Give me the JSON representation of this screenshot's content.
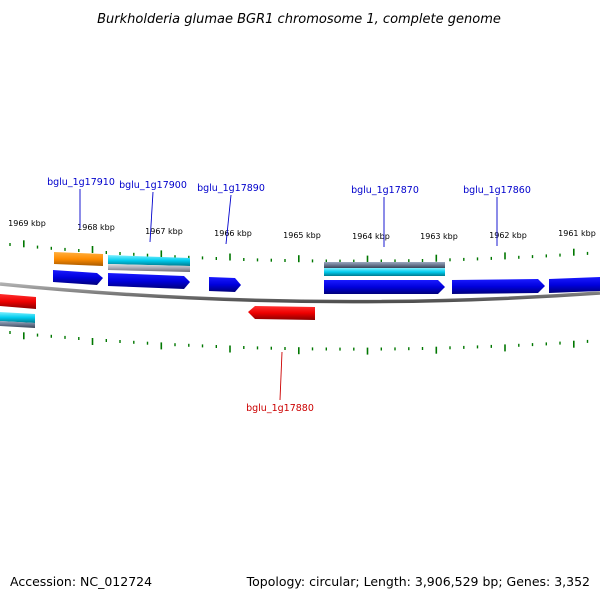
{
  "title": "Burkholderia glumae BGR1 chromosome 1, complete genome",
  "footer": {
    "accession": "Accession: NC_012724",
    "topology": "Topology: circular; Length: 3,906,529 bp; Genes: 3,352"
  },
  "kbp_labels": [
    "1969 kbp",
    "1968 kbp",
    "1967 kbp",
    "1966 kbp",
    "1965 kbp",
    "1964 kbp",
    "1963 kbp",
    "1962 kbp",
    "1961 kbp"
  ],
  "gene_labels": [
    {
      "text": "bglu_1g17910",
      "strand": "forward"
    },
    {
      "text": "bglu_1g17900",
      "strand": "forward"
    },
    {
      "text": "bglu_1g17890",
      "strand": "forward"
    },
    {
      "text": "bglu_1g17870",
      "strand": "forward"
    },
    {
      "text": "bglu_1g17860",
      "strand": "forward"
    },
    {
      "text": "bglu_1g17880",
      "strand": "reverse"
    }
  ],
  "colors": {
    "forward_label": "#0000cc",
    "reverse_label": "#cc0000",
    "forward_gene": "#0000ee",
    "reverse_gene": "#ee0000",
    "ticks": "#007700",
    "backbone": "#808080",
    "orange_feature": "#ff8c00",
    "cyan_feature": "#00ccee"
  }
}
